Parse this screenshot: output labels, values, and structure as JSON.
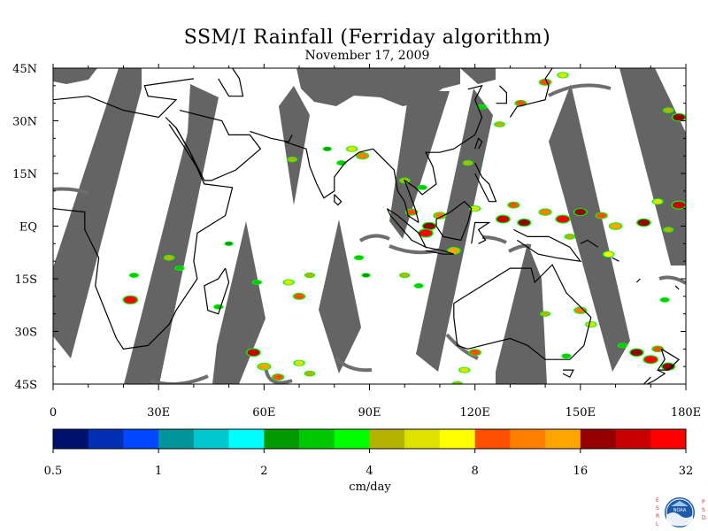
{
  "title": "SSM/I Rainfall (Ferriday algorithm)",
  "date": "November 17, 2009",
  "map": {
    "lon_range": [
      0,
      180
    ],
    "lat_range": [
      -45,
      45
    ],
    "lat_labels": [
      "45N",
      "30N",
      "15N",
      "EQ",
      "15S",
      "30S",
      "45S"
    ],
    "lon_labels": [
      "0",
      "30E",
      "60E",
      "90E",
      "120E",
      "150E",
      "180E"
    ],
    "no_data_color": "#646464",
    "land_outline_color": "#000000",
    "rain_cells": [
      {
        "lon": 110,
        "lat": 3,
        "value": 12
      },
      {
        "lon": 107,
        "lat": 0,
        "value": 20
      },
      {
        "lon": 106,
        "lat": -2,
        "value": 28
      },
      {
        "lon": 102,
        "lat": 4,
        "value": 10
      },
      {
        "lon": 114,
        "lat": -7,
        "value": 14
      },
      {
        "lon": 120,
        "lat": 5,
        "value": 6
      },
      {
        "lon": 128,
        "lat": 2,
        "value": 22
      },
      {
        "lon": 131,
        "lat": 6,
        "value": 9
      },
      {
        "lon": 134,
        "lat": 1,
        "value": 18
      },
      {
        "lon": 140,
        "lat": 4,
        "value": 12
      },
      {
        "lon": 145,
        "lat": 2,
        "value": 26
      },
      {
        "lon": 150,
        "lat": 4,
        "value": 16
      },
      {
        "lon": 156,
        "lat": 3,
        "value": 9
      },
      {
        "lon": 160,
        "lat": 0,
        "value": 14
      },
      {
        "lon": 168,
        "lat": 1,
        "value": 20
      },
      {
        "lon": 172,
        "lat": 7,
        "value": 6
      },
      {
        "lon": 178,
        "lat": 6,
        "value": 25
      },
      {
        "lon": 147,
        "lat": -3,
        "value": 5
      },
      {
        "lon": 158,
        "lat": -8,
        "value": 7
      },
      {
        "lon": 175,
        "lat": -1,
        "value": 4
      },
      {
        "lon": 88,
        "lat": 20,
        "value": 12
      },
      {
        "lon": 85,
        "lat": 22,
        "value": 6
      },
      {
        "lon": 82,
        "lat": 18,
        "value": 3
      },
      {
        "lon": 68,
        "lat": 19,
        "value": 4
      },
      {
        "lon": 78,
        "lat": 22,
        "value": 2
      },
      {
        "lon": 100,
        "lat": 13,
        "value": 5
      },
      {
        "lon": 105,
        "lat": 11,
        "value": 3
      },
      {
        "lon": 118,
        "lat": 18,
        "value": 4
      },
      {
        "lon": 127,
        "lat": 29,
        "value": 5
      },
      {
        "lon": 133,
        "lat": 35,
        "value": 8
      },
      {
        "lon": 140,
        "lat": 41,
        "value": 10
      },
      {
        "lon": 145,
        "lat": 43,
        "value": 6
      },
      {
        "lon": 178,
        "lat": 31,
        "value": 20
      },
      {
        "lon": 175,
        "lat": 33,
        "value": 5
      },
      {
        "lon": 122,
        "lat": 34,
        "value": 3
      },
      {
        "lon": 87,
        "lat": -9,
        "value": 3
      },
      {
        "lon": 89,
        "lat": -14,
        "value": 2
      },
      {
        "lon": 100,
        "lat": -14,
        "value": 4
      },
      {
        "lon": 104,
        "lat": -17,
        "value": 3
      },
      {
        "lon": 67,
        "lat": -16,
        "value": 6
      },
      {
        "lon": 70,
        "lat": -20,
        "value": 10
      },
      {
        "lon": 73,
        "lat": -14,
        "value": 4
      },
      {
        "lon": 58,
        "lat": -16,
        "value": 3
      },
      {
        "lon": 50,
        "lat": -5,
        "value": 2
      },
      {
        "lon": 23,
        "lat": -14,
        "value": 3
      },
      {
        "lon": 33,
        "lat": -9,
        "value": 5
      },
      {
        "lon": 36,
        "lat": -12,
        "value": 3
      },
      {
        "lon": 22,
        "lat": -21,
        "value": 30
      },
      {
        "lon": 47,
        "lat": -23,
        "value": 3
      },
      {
        "lon": 57,
        "lat": -36,
        "value": 22
      },
      {
        "lon": 60,
        "lat": -40,
        "value": 14
      },
      {
        "lon": 64,
        "lat": -43,
        "value": 9
      },
      {
        "lon": 70,
        "lat": -39,
        "value": 6
      },
      {
        "lon": 73,
        "lat": -42,
        "value": 5
      },
      {
        "lon": 120,
        "lat": -36,
        "value": 10
      },
      {
        "lon": 117,
        "lat": -41,
        "value": 6
      },
      {
        "lon": 140,
        "lat": -25,
        "value": 4
      },
      {
        "lon": 150,
        "lat": -24,
        "value": 12
      },
      {
        "lon": 153,
        "lat": -28,
        "value": 6
      },
      {
        "lon": 146,
        "lat": -37,
        "value": 3
      },
      {
        "lon": 166,
        "lat": -36,
        "value": 20
      },
      {
        "lon": 170,
        "lat": -38,
        "value": 28
      },
      {
        "lon": 175,
        "lat": -40,
        "value": 18
      },
      {
        "lon": 172,
        "lat": -35,
        "value": 8
      },
      {
        "lon": 162,
        "lat": -34,
        "value": 3
      },
      {
        "lon": 174,
        "lat": -21,
        "value": 3
      },
      {
        "lon": 115,
        "lat": -45,
        "value": 5
      }
    ]
  },
  "colorbar": {
    "label": "cm/day",
    "tick_labels": [
      "0.5",
      "1",
      "2",
      "4",
      "8",
      "16",
      "32"
    ],
    "tick_values": [
      0.5,
      1,
      2,
      4,
      8,
      16,
      32
    ],
    "colors": [
      "#00126e",
      "#002fb3",
      "#0047ff",
      "#00959a",
      "#00c8cc",
      "#00ffff",
      "#009a00",
      "#00c800",
      "#00ff00",
      "#b4b400",
      "#e1e100",
      "#ffff00",
      "#ff5000",
      "#ff8000",
      "#ffa500",
      "#960000",
      "#c80000",
      "#ff0000"
    ]
  },
  "logo": {
    "left_letters": "ESRL",
    "right_letters": "PSD",
    "center_text": "NOAA"
  }
}
